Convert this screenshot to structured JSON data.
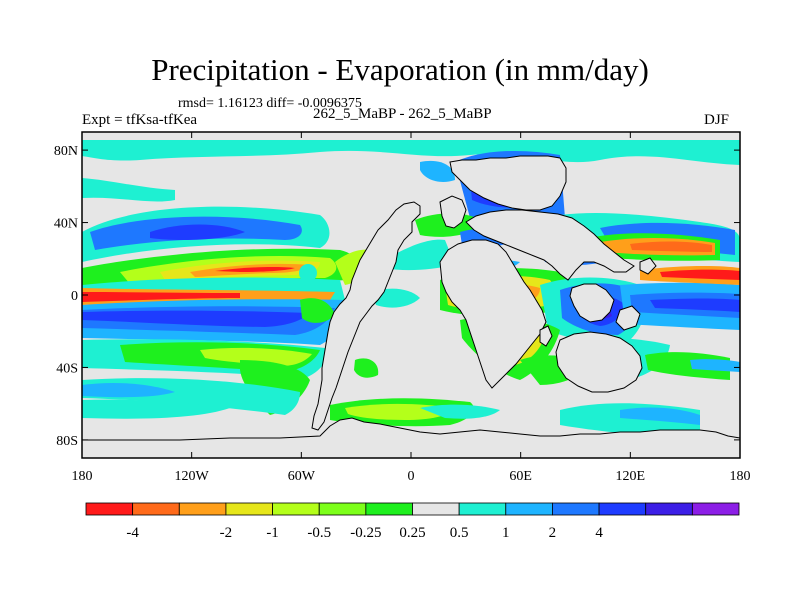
{
  "title": "Precipitation - Evaporation (in mm/day)",
  "stats": "rmsd= 1.16123 diff= -0.0096375",
  "experiment": "Expt = tfKsa-tfKea",
  "case_label": "262_5_MaBP - 262_5_MaBP",
  "season": "DJF",
  "axes": {
    "x_ticks": [
      {
        "value": -180,
        "label": "180"
      },
      {
        "value": -120,
        "label": "120W"
      },
      {
        "value": -60,
        "label": "60W"
      },
      {
        "value": 0,
        "label": "0"
      },
      {
        "value": 60,
        "label": "60E"
      },
      {
        "value": 120,
        "label": "120E"
      },
      {
        "value": 180,
        "label": "180"
      }
    ],
    "y_ticks": [
      {
        "value": 80,
        "label": "80N"
      },
      {
        "value": 40,
        "label": "40N"
      },
      {
        "value": 0,
        "label": "0"
      },
      {
        "value": -40,
        "label": "40S"
      },
      {
        "value": -80,
        "label": "80S"
      }
    ],
    "lon_range": [
      -180,
      180
    ],
    "lat_range": [
      -90,
      90
    ]
  },
  "colorbar": {
    "colors": [
      "#ff1a1a",
      "#ff6a1a",
      "#ff9f1a",
      "#e6e61a",
      "#b4ff1a",
      "#7dff1a",
      "#1ef01e",
      "#e6e6e6",
      "#1ef0d2",
      "#1eb4ff",
      "#1e78ff",
      "#1e3cff",
      "#3c1ee6",
      "#8c1ee6"
    ],
    "labels": [
      "-4",
      "-2",
      "-1",
      "-0.5",
      "-0.25",
      "0.25",
      "0.5",
      "1",
      "2",
      "4"
    ],
    "label_edges": [
      1,
      3,
      4,
      5,
      6,
      7,
      8,
      9,
      10,
      11
    ]
  },
  "field_colors": {
    "background": "#e6e6e6",
    "cyan": "#1ef0d2",
    "lightblue": "#1eb4ff",
    "blue": "#1e78ff",
    "deepblue": "#1e3cff",
    "purple": "#3c1ee6",
    "green": "#1ef01e",
    "lightgreen": "#7dff1a",
    "lime": "#b4ff1a",
    "yellow": "#e6e61a",
    "orange": "#ff9f1a",
    "redorange": "#ff6a1a",
    "red": "#ff1a1a"
  }
}
